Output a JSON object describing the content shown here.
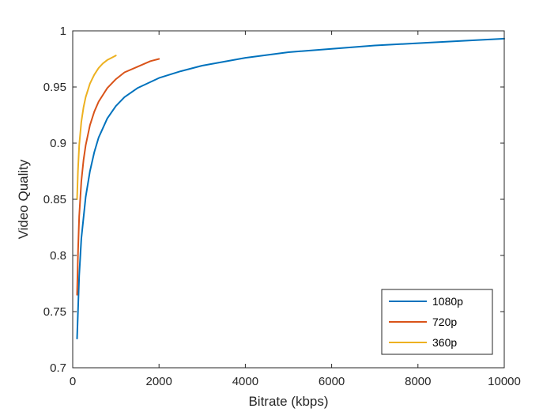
{
  "chart_data": {
    "type": "line",
    "title": "",
    "xlabel": "Bitrate (kbps)",
    "ylabel": "Video Quality",
    "xlim": [
      0,
      10000
    ],
    "ylim": [
      0.7,
      1.0
    ],
    "xticks": [
      0,
      2000,
      4000,
      6000,
      8000,
      10000
    ],
    "xtick_labels": [
      "0",
      "2000",
      "4000",
      "6000",
      "8000",
      "10000"
    ],
    "yticks": [
      0.7,
      0.75,
      0.8,
      0.85,
      0.9,
      0.95,
      1.0
    ],
    "ytick_labels": [
      "0.7",
      "0.75",
      "0.8",
      "0.85",
      "0.9",
      "0.95",
      "1"
    ],
    "grid": false,
    "legend_position": "bottom-right",
    "series": [
      {
        "name": "1080p",
        "color": "#0072BD",
        "x": [
          100,
          150,
          200,
          300,
          400,
          500,
          600,
          800,
          1000,
          1200,
          1500,
          2000,
          2500,
          3000,
          4000,
          5000,
          6000,
          7000,
          8000,
          9000,
          10000
        ],
        "y": [
          0.726,
          0.782,
          0.815,
          0.852,
          0.875,
          0.892,
          0.905,
          0.922,
          0.933,
          0.941,
          0.949,
          0.958,
          0.964,
          0.969,
          0.976,
          0.981,
          0.984,
          0.987,
          0.989,
          0.991,
          0.993
        ]
      },
      {
        "name": "720p",
        "color": "#D95319",
        "x": [
          100,
          125,
          150,
          200,
          250,
          300,
          400,
          500,
          600,
          800,
          1000,
          1200,
          1500,
          1800,
          2000
        ],
        "y": [
          0.765,
          0.805,
          0.835,
          0.866,
          0.885,
          0.898,
          0.916,
          0.928,
          0.937,
          0.949,
          0.957,
          0.963,
          0.968,
          0.973,
          0.975
        ]
      },
      {
        "name": "360p",
        "color": "#EDB120",
        "x": [
          100,
          120,
          150,
          200,
          250,
          300,
          400,
          500,
          600,
          700,
          800,
          900,
          1000
        ],
        "y": [
          0.85,
          0.875,
          0.898,
          0.919,
          0.932,
          0.941,
          0.953,
          0.961,
          0.967,
          0.971,
          0.974,
          0.976,
          0.978
        ]
      }
    ]
  }
}
